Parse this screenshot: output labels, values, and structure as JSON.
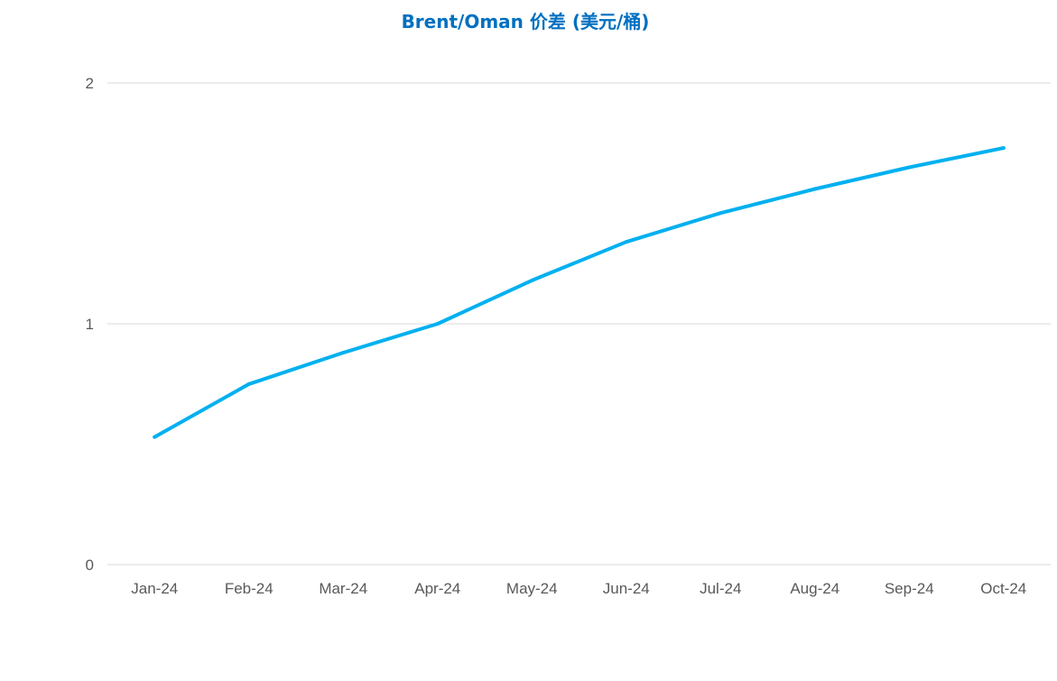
{
  "colors": {
    "title": "#0070C0",
    "series": "#00B0F0",
    "grid": "#D9D9D9",
    "tick_text": "#595959"
  },
  "chart_data": {
    "type": "line",
    "title": "Brent/Oman 价差 (美元/桶)",
    "xlabel": "",
    "ylabel": "",
    "categories": [
      "Jan-24",
      "Feb-24",
      "Mar-24",
      "Apr-24",
      "May-24",
      "Jun-24",
      "Jul-24",
      "Aug-24",
      "Sep-24",
      "Oct-24"
    ],
    "y_ticks": [
      "0",
      "1",
      "2"
    ],
    "ylim": [
      0,
      2
    ],
    "grid": true,
    "legend": "none",
    "series": [
      {
        "values": [
          0.53,
          0.75,
          0.88,
          1.0,
          1.18,
          1.34,
          1.46,
          1.56,
          1.65,
          1.73
        ]
      }
    ]
  }
}
